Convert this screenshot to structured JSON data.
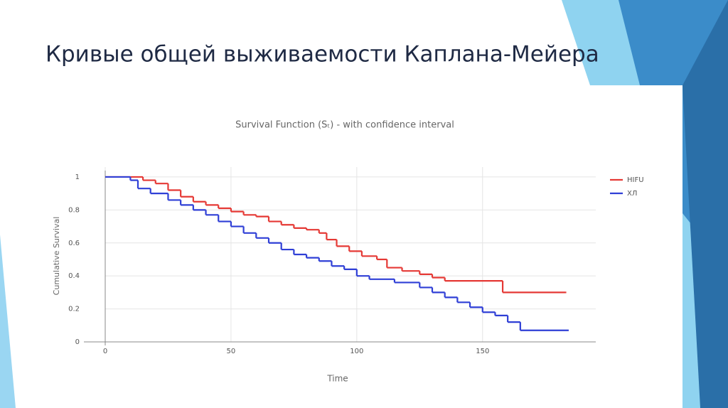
{
  "slide_title": "Кривые общей выживаемости Каплана-Мейера",
  "chart_data": {
    "type": "line",
    "drawstyle": "steps-post",
    "title": "Survival Function (Sₜ) - with confidence interval",
    "x_label": "Time",
    "y_label": "Cumulative Survival",
    "xlim": [
      0,
      195
    ],
    "ylim": [
      0,
      1.06
    ],
    "xticks": [
      0,
      50,
      100,
      150
    ],
    "yticks": [
      0,
      0.2,
      0.4,
      0.6,
      0.8,
      1
    ],
    "grid": true,
    "legend": "upper right",
    "series": [
      {
        "name": "HIFU",
        "color": "#e53935",
        "x": [
          0,
          10,
          15,
          20,
          25,
          30,
          35,
          40,
          45,
          50,
          55,
          60,
          65,
          70,
          75,
          80,
          85,
          88,
          92,
          97,
          102,
          108,
          112,
          118,
          125,
          130,
          135,
          158,
          183
        ],
        "values": [
          1,
          1,
          0.98,
          0.96,
          0.92,
          0.88,
          0.85,
          0.83,
          0.81,
          0.79,
          0.77,
          0.76,
          0.73,
          0.71,
          0.69,
          0.68,
          0.66,
          0.62,
          0.58,
          0.55,
          0.52,
          0.5,
          0.45,
          0.43,
          0.41,
          0.39,
          0.37,
          0.3,
          0.3
        ]
      },
      {
        "name": "ХЛ",
        "color": "#2f3fd6",
        "x": [
          0,
          10,
          13,
          18,
          25,
          30,
          35,
          40,
          45,
          50,
          55,
          60,
          65,
          70,
          75,
          80,
          85,
          90,
          95,
          100,
          105,
          115,
          125,
          130,
          135,
          140,
          145,
          150,
          155,
          160,
          165,
          184
        ],
        "values": [
          1,
          0.98,
          0.93,
          0.9,
          0.86,
          0.83,
          0.8,
          0.77,
          0.73,
          0.7,
          0.66,
          0.63,
          0.6,
          0.56,
          0.53,
          0.51,
          0.49,
          0.46,
          0.44,
          0.4,
          0.38,
          0.36,
          0.33,
          0.3,
          0.27,
          0.24,
          0.21,
          0.18,
          0.16,
          0.12,
          0.07,
          0.07
        ]
      }
    ]
  }
}
